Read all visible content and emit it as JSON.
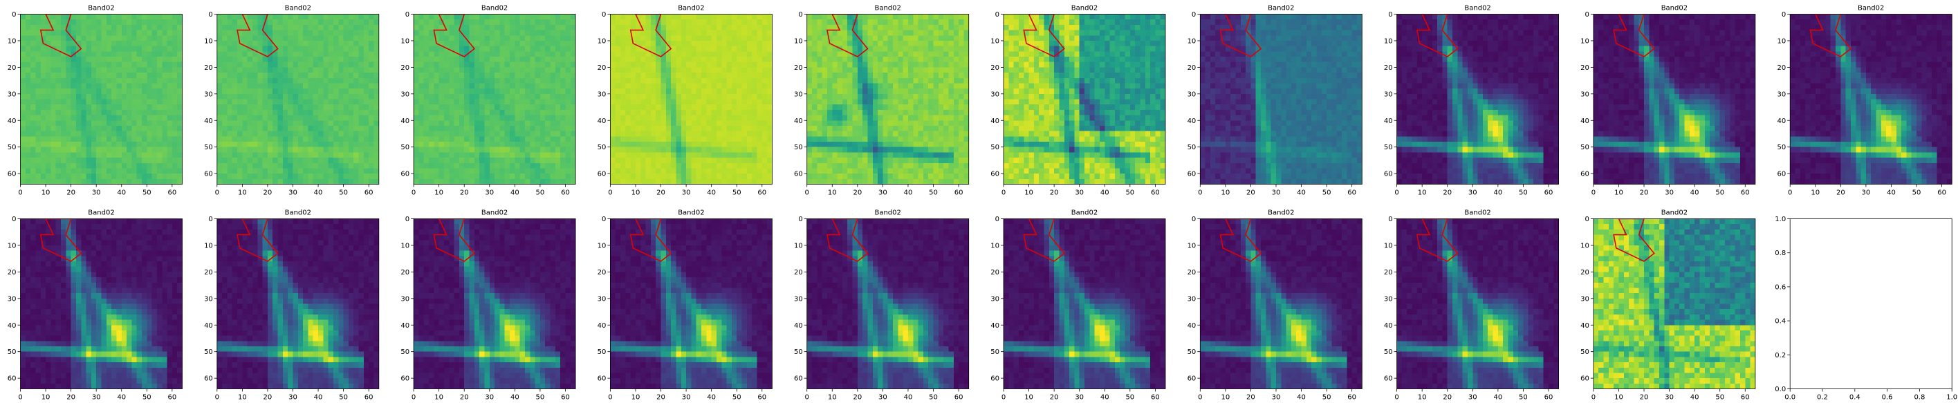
{
  "figure": {
    "panel_title": "Band02",
    "empty_axes_ticks": [
      "0.0",
      "0.2",
      "0.4",
      "0.6",
      "0.8",
      "1.0"
    ]
  },
  "chart_data": {
    "type": "heatmap",
    "layout": "grid of 2 rows x 10 columns; last subplot is an empty axes",
    "x_ticks": [
      0,
      10,
      20,
      30,
      40,
      50,
      60
    ],
    "y_ticks": [
      0,
      10,
      20,
      30,
      40,
      50,
      60
    ],
    "xlim": [
      0,
      64
    ],
    "ylim": [
      64,
      0
    ],
    "colormap": "viridis",
    "overlay": {
      "type": "polygon",
      "color": "#e00000",
      "points": [
        [
          10,
          0
        ],
        [
          20,
          0
        ],
        [
          18,
          6
        ],
        [
          24,
          13
        ],
        [
          20,
          16
        ],
        [
          9,
          11
        ],
        [
          8,
          6
        ],
        [
          13,
          6
        ]
      ]
    },
    "panels": [
      {
        "title": "Band02",
        "mode": "green"
      },
      {
        "title": "Band02",
        "mode": "green"
      },
      {
        "title": "Band02",
        "mode": "green"
      },
      {
        "title": "Band02",
        "mode": "yellow"
      },
      {
        "title": "Band02",
        "mode": "yellowgreen"
      },
      {
        "title": "Band02",
        "mode": "mixed"
      },
      {
        "title": "Band02",
        "mode": "darkwater"
      },
      {
        "title": "Band02",
        "mode": "dark"
      },
      {
        "title": "Band02",
        "mode": "dark"
      },
      {
        "title": "Band02",
        "mode": "dark"
      },
      {
        "title": "Band02",
        "mode": "dark"
      },
      {
        "title": "Band02",
        "mode": "dark"
      },
      {
        "title": "Band02",
        "mode": "dark"
      },
      {
        "title": "Band02",
        "mode": "dark"
      },
      {
        "title": "Band02",
        "mode": "dark"
      },
      {
        "title": "Band02",
        "mode": "dark"
      },
      {
        "title": "Band02",
        "mode": "dark"
      },
      {
        "title": "Band02",
        "mode": "dark"
      },
      {
        "title": "Band02",
        "mode": "bright"
      }
    ],
    "empty_axes": {
      "xlim": [
        0,
        1
      ],
      "ylim": [
        0,
        1
      ]
    }
  }
}
